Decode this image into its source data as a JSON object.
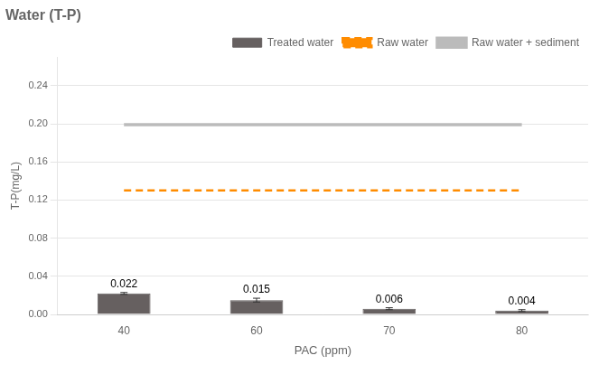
{
  "chart_data": {
    "type": "bar",
    "title": "Water (T-P)",
    "x_label": "PAC (ppm)",
    "y_label": "T-P(mg/L)",
    "categories": [
      40,
      60,
      70,
      80
    ],
    "series": [
      {
        "name": "Treated water",
        "type": "bar",
        "color": "#666060",
        "values": [
          0.022,
          0.015,
          0.006,
          0.004
        ],
        "errors": [
          0.001,
          0.002,
          0.001,
          0.001
        ]
      },
      {
        "name": "Raw water",
        "type": "hline",
        "color": "#FF8C00",
        "line_style": "dashed",
        "value": 0.13
      },
      {
        "name": "Raw water + sediment",
        "type": "hline",
        "color": "#BBBBBB",
        "line_style": "solid",
        "value": 0.199
      }
    ],
    "ylim": [
      0,
      0.27
    ],
    "yticks": [
      {
        "value": 0,
        "label": "0.00"
      },
      0.04,
      0.08,
      0.12,
      0.16,
      {
        "value": 0.2,
        "label": "0.20"
      },
      0.24
    ],
    "grid": true,
    "legend": "upper right",
    "data_labels": true
  }
}
